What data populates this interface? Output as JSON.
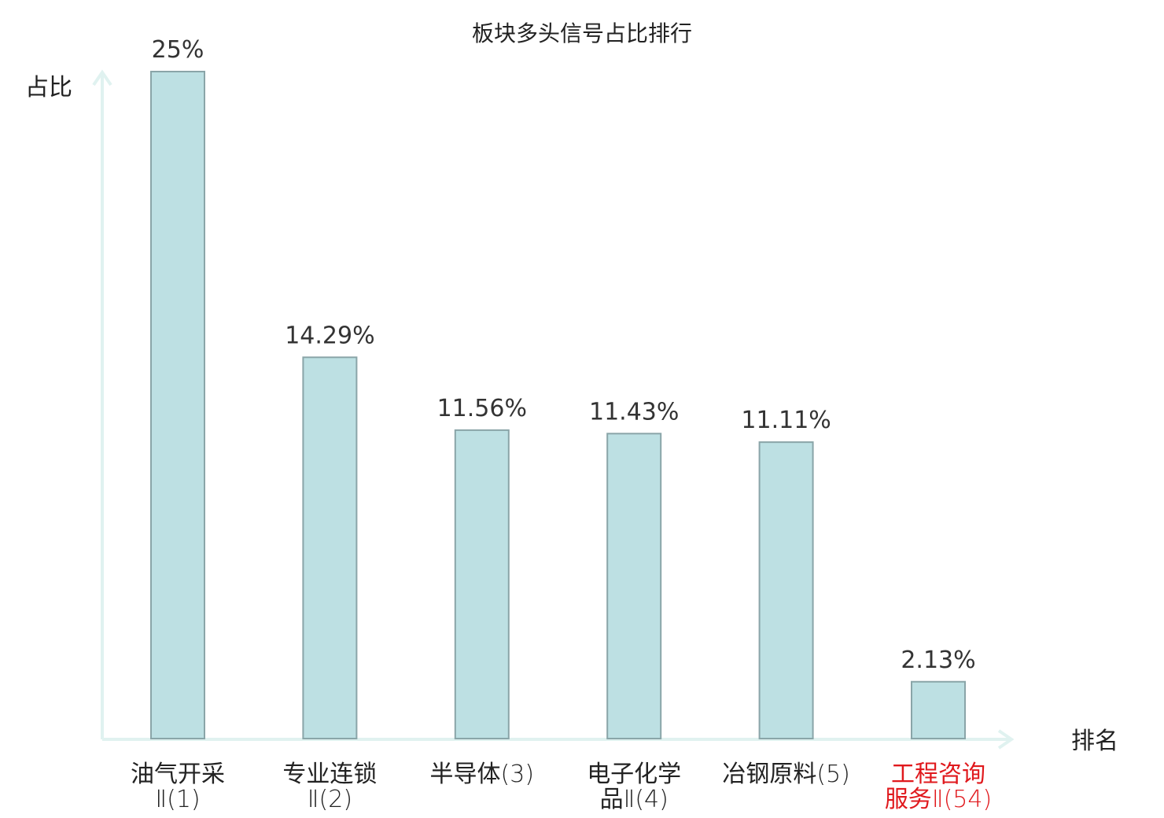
{
  "chart_data": {
    "type": "bar",
    "title": "板块多头信号占比排行",
    "ylabel": "占比",
    "xlabel": "排名",
    "ylim": [
      0,
      25
    ],
    "grid": false,
    "categories": [
      {
        "name": "油气开采",
        "suffix": "Ⅱ(1)"
      },
      {
        "name": "专业连锁",
        "suffix": "Ⅱ(2)"
      },
      {
        "name": "半导体",
        "suffix": "(3)"
      },
      {
        "name": "电子化学",
        "suffix": "品Ⅱ(4)"
      },
      {
        "name": "冶钢原料",
        "suffix": "(5)"
      },
      {
        "name": "工程咨询",
        "suffix": "服务Ⅱ(54)",
        "highlight": true
      }
    ],
    "values": [
      25,
      14.29,
      11.56,
      11.43,
      11.11,
      2.13
    ],
    "value_labels": [
      "25%",
      "14.29%",
      "11.56%",
      "11.43%",
      "11.11%",
      "2.13%"
    ]
  },
  "colors": {
    "bar_fill": "#bde0e3",
    "bar_stroke": "#8aa5a8",
    "axis": "#e0f2f0",
    "text": "#222222",
    "highlight_text": "#e0191d"
  }
}
